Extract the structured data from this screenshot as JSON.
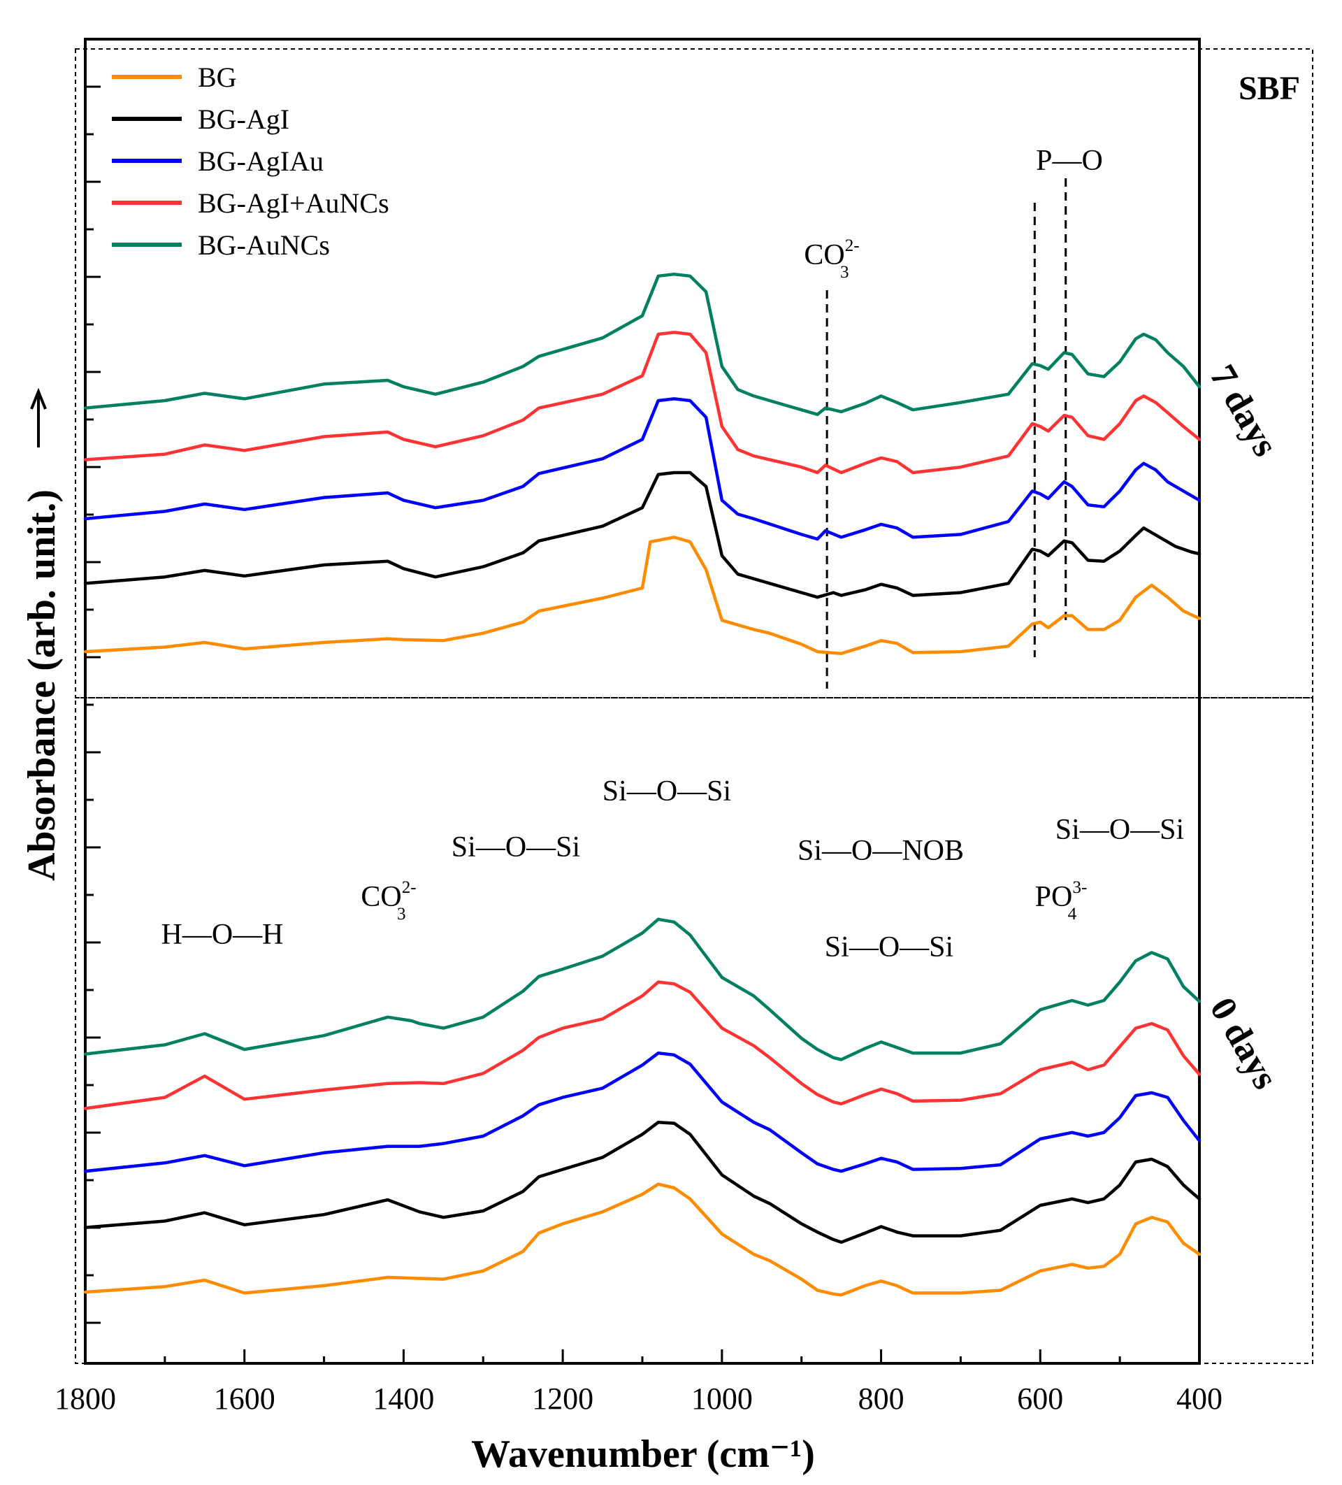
{
  "chart_data": {
    "type": "line",
    "title": "",
    "xlabel": "Wavenumber (cm⁻¹)",
    "ylabel": "Absorbance (arb. unit.)",
    "xlim": [
      1800,
      400
    ],
    "x_ticks": [
      "1800",
      "1600",
      "1400",
      "1200",
      "1000",
      "800",
      "600",
      "400"
    ],
    "medium_label": "SBF",
    "panels": [
      {
        "id": "top",
        "label": "7 days"
      },
      {
        "id": "bottom",
        "label": "0 days"
      }
    ],
    "legend": [
      "BG",
      "BG-AgI",
      "BG-AgIAu",
      "BG-AgI+AuNCs",
      "BG-AuNCs"
    ],
    "colors": {
      "BG": "#ff8c00",
      "BG-AgI": "#000000",
      "BG-AgIAu": "#0000ff",
      "BG-AgI+AuNCs": "#ff3333",
      "BG-AuNCs": "#008060"
    },
    "annotations_top": [
      {
        "text": "CO",
        "sub": "3",
        "sup": "2-",
        "x": 868
      },
      {
        "text": "P—O",
        "x_lines": [
          607,
          568
        ]
      }
    ],
    "annotations_bottom": [
      {
        "text": "H—O—H",
        "x": 1620
      },
      {
        "text": "CO",
        "sub": "3",
        "sup": "2-",
        "x": 1415
      },
      {
        "text": "Si—O—Si",
        "x": 1250
      },
      {
        "text": "Si—O—Si",
        "x": 1080
      },
      {
        "text": "Si—O—NOB",
        "x": 900
      },
      {
        "text": "Si—O—Si",
        "x": 790
      },
      {
        "text": "PO",
        "sub": "4",
        "sup": "3-",
        "x": 590
      },
      {
        "text": "Si—O—Si",
        "x": 470
      }
    ],
    "series_top": [
      {
        "name": "BG",
        "x": [
          1800,
          1700,
          1650,
          1600,
          1500,
          1420,
          1400,
          1350,
          1300,
          1250,
          1230,
          1150,
          1100,
          1090,
          1060,
          1040,
          1020,
          1000,
          980,
          960,
          940,
          900,
          880,
          850,
          820,
          800,
          780,
          760,
          700,
          640,
          610,
          600,
          590,
          570,
          560,
          540,
          520,
          500,
          480,
          460,
          440,
          420,
          400
        ],
        "y": [
          0.6,
          1.1,
          1.6,
          0.9,
          1.6,
          2.0,
          1.9,
          1.8,
          2.6,
          3.8,
          5.0,
          6.4,
          7.5,
          12.5,
          13.0,
          12.5,
          9.5,
          4.0,
          3.5,
          3.0,
          2.6,
          1.4,
          0.6,
          0.4,
          1.2,
          1.8,
          1.5,
          0.5,
          0.6,
          1.2,
          3.6,
          3.8,
          3.2,
          4.5,
          4.5,
          3.0,
          3.0,
          4.0,
          6.5,
          7.8,
          6.5,
          5.0,
          4.2
        ]
      },
      {
        "name": "BG-AgI",
        "x": [
          1800,
          1700,
          1650,
          1600,
          1500,
          1420,
          1400,
          1360,
          1300,
          1250,
          1230,
          1150,
          1100,
          1080,
          1060,
          1040,
          1020,
          1000,
          980,
          960,
          900,
          880,
          860,
          850,
          820,
          800,
          780,
          760,
          700,
          640,
          610,
          600,
          590,
          570,
          560,
          540,
          520,
          500,
          480,
          470,
          450,
          430,
          410,
          400
        ],
        "y": [
          8.0,
          8.7,
          9.4,
          8.8,
          10.0,
          10.4,
          9.6,
          8.7,
          9.8,
          11.3,
          12.6,
          14.2,
          16.2,
          19.8,
          20.0,
          20.0,
          18.5,
          11.0,
          9.0,
          8.5,
          7.0,
          6.5,
          7.0,
          6.7,
          7.3,
          7.9,
          7.5,
          6.7,
          7.0,
          8.0,
          11.7,
          11.5,
          11.0,
          12.6,
          12.4,
          10.5,
          10.4,
          11.5,
          13.2,
          14.0,
          13.0,
          12.0,
          11.4,
          11.2
        ]
      },
      {
        "name": "BG-AgIAu",
        "x": [
          1800,
          1700,
          1650,
          1600,
          1500,
          1420,
          1400,
          1360,
          1300,
          1250,
          1230,
          1150,
          1100,
          1080,
          1060,
          1040,
          1020,
          1000,
          980,
          960,
          900,
          880,
          870,
          850,
          820,
          800,
          780,
          760,
          700,
          640,
          610,
          600,
          590,
          570,
          560,
          540,
          520,
          500,
          480,
          470,
          455,
          440,
          420,
          400
        ],
        "y": [
          15.0,
          15.8,
          16.6,
          16.0,
          17.3,
          17.8,
          17.0,
          16.2,
          17.0,
          18.5,
          19.9,
          21.5,
          23.6,
          27.8,
          28.0,
          27.8,
          26.0,
          17.0,
          15.5,
          15.0,
          13.3,
          12.8,
          13.7,
          13.0,
          13.8,
          14.4,
          14.0,
          13.0,
          13.3,
          14.7,
          18.0,
          17.7,
          17.2,
          19.0,
          18.5,
          16.5,
          16.3,
          18.0,
          20.3,
          21.0,
          20.3,
          19.0,
          18.0,
          17.0
        ]
      },
      {
        "name": "BG-AgI+AuNCs",
        "x": [
          1800,
          1700,
          1650,
          1600,
          1500,
          1420,
          1400,
          1360,
          1300,
          1250,
          1230,
          1150,
          1100,
          1080,
          1060,
          1040,
          1020,
          1000,
          980,
          960,
          900,
          880,
          870,
          850,
          820,
          800,
          780,
          760,
          700,
          640,
          610,
          600,
          590,
          570,
          560,
          540,
          520,
          500,
          480,
          470,
          455,
          440,
          420,
          400
        ],
        "y": [
          21.4,
          22.0,
          23.0,
          22.4,
          23.9,
          24.4,
          23.6,
          22.8,
          24.0,
          25.7,
          27.0,
          28.5,
          30.5,
          35.0,
          35.2,
          35.0,
          33.0,
          25.0,
          22.5,
          21.8,
          20.6,
          20.0,
          20.8,
          20.0,
          21.0,
          21.6,
          21.2,
          20.0,
          20.6,
          21.8,
          25.3,
          25.0,
          24.5,
          26.2,
          26.0,
          24.0,
          23.6,
          25.3,
          27.8,
          28.3,
          27.6,
          26.5,
          25.0,
          23.6
        ]
      },
      {
        "name": "BG-AuNCs",
        "x": [
          1800,
          1700,
          1650,
          1600,
          1500,
          1420,
          1400,
          1360,
          1300,
          1250,
          1230,
          1150,
          1100,
          1080,
          1060,
          1040,
          1020,
          1000,
          980,
          960,
          900,
          880,
          870,
          850,
          820,
          800,
          780,
          760,
          700,
          640,
          610,
          600,
          590,
          570,
          560,
          540,
          520,
          500,
          480,
          470,
          455,
          440,
          420,
          400
        ],
        "y": [
          27.0,
          27.8,
          28.6,
          28.0,
          29.6,
          30.0,
          29.3,
          28.5,
          29.8,
          31.5,
          32.6,
          34.6,
          37.0,
          41.3,
          41.5,
          41.3,
          39.6,
          31.5,
          29.0,
          28.3,
          26.8,
          26.3,
          27.0,
          26.6,
          27.5,
          28.3,
          27.6,
          26.8,
          27.6,
          28.5,
          31.8,
          31.6,
          31.2,
          33.0,
          32.8,
          30.7,
          30.4,
          32.0,
          34.5,
          35.0,
          34.4,
          33.0,
          31.5,
          29.3
        ]
      }
    ],
    "series_bottom": [
      {
        "name": "BG",
        "x": [
          1800,
          1700,
          1650,
          1600,
          1500,
          1420,
          1350,
          1300,
          1250,
          1230,
          1200,
          1150,
          1100,
          1080,
          1060,
          1040,
          1000,
          960,
          940,
          900,
          880,
          860,
          850,
          820,
          800,
          780,
          760,
          700,
          650,
          600,
          560,
          540,
          520,
          500,
          480,
          460,
          440,
          420,
          400
        ],
        "y": [
          0.9,
          1.5,
          2.2,
          0.8,
          1.6,
          2.5,
          2.3,
          3.2,
          5.3,
          7.3,
          8.3,
          9.6,
          11.5,
          12.6,
          12.2,
          11.0,
          7.2,
          5.0,
          4.3,
          2.3,
          1.1,
          0.7,
          0.6,
          1.6,
          2.1,
          1.6,
          0.8,
          0.8,
          1.1,
          3.2,
          3.9,
          3.5,
          3.7,
          5.0,
          8.3,
          9.0,
          8.5,
          6.2,
          5.0
        ]
      },
      {
        "name": "BG-AgI",
        "x": [
          1800,
          1700,
          1650,
          1600,
          1500,
          1420,
          1380,
          1350,
          1300,
          1250,
          1230,
          1200,
          1150,
          1100,
          1080,
          1060,
          1040,
          1000,
          960,
          940,
          900,
          880,
          860,
          850,
          820,
          800,
          780,
          760,
          700,
          650,
          600,
          560,
          540,
          520,
          500,
          480,
          460,
          440,
          420,
          400
        ],
        "y": [
          7.9,
          8.6,
          9.5,
          8.2,
          9.3,
          10.9,
          9.6,
          9.0,
          9.7,
          11.8,
          13.4,
          14.2,
          15.5,
          18.0,
          19.3,
          19.2,
          18.0,
          13.6,
          11.3,
          10.5,
          8.3,
          7.4,
          6.6,
          6.3,
          7.3,
          8.0,
          7.4,
          7.0,
          7.0,
          7.6,
          10.3,
          11.0,
          10.6,
          11.0,
          12.5,
          15.0,
          15.3,
          14.5,
          12.5,
          11.0
        ]
      },
      {
        "name": "BG-AgIAu",
        "x": [
          1800,
          1700,
          1650,
          1600,
          1500,
          1420,
          1380,
          1350,
          1300,
          1250,
          1230,
          1200,
          1150,
          1100,
          1080,
          1060,
          1040,
          1000,
          960,
          940,
          900,
          880,
          860,
          850,
          820,
          800,
          780,
          760,
          700,
          650,
          600,
          560,
          540,
          520,
          500,
          480,
          460,
          440,
          420,
          400
        ],
        "y": [
          14.0,
          14.9,
          15.7,
          14.6,
          16.0,
          16.7,
          16.7,
          17.0,
          17.8,
          20.0,
          21.2,
          22.0,
          23.0,
          25.5,
          26.8,
          26.6,
          25.6,
          21.5,
          19.3,
          18.5,
          16.0,
          14.8,
          14.2,
          14.0,
          14.8,
          15.4,
          15.0,
          14.2,
          14.3,
          14.7,
          17.5,
          18.2,
          17.8,
          18.2,
          19.8,
          22.2,
          22.5,
          22.0,
          19.5,
          17.3
        ]
      },
      {
        "name": "BG-AgI+AuNCs",
        "x": [
          1800,
          1700,
          1650,
          1600,
          1500,
          1420,
          1380,
          1350,
          1300,
          1250,
          1230,
          1200,
          1150,
          1100,
          1080,
          1060,
          1040,
          1000,
          960,
          940,
          900,
          880,
          860,
          850,
          820,
          800,
          780,
          760,
          700,
          650,
          600,
          560,
          540,
          520,
          500,
          480,
          460,
          440,
          420,
          400
        ],
        "y": [
          20.8,
          22.0,
          24.3,
          21.8,
          22.8,
          23.5,
          23.6,
          23.5,
          24.6,
          27.1,
          28.5,
          29.5,
          30.5,
          33.0,
          34.5,
          34.3,
          33.4,
          29.5,
          27.6,
          26.3,
          23.5,
          22.3,
          21.5,
          21.3,
          22.3,
          22.9,
          22.4,
          21.6,
          21.7,
          22.4,
          25.0,
          25.8,
          25.0,
          25.5,
          27.5,
          29.5,
          30.0,
          29.3,
          26.5,
          24.5
        ]
      },
      {
        "name": "BG-AuNCs",
        "x": [
          1800,
          1700,
          1650,
          1600,
          1500,
          1420,
          1390,
          1380,
          1350,
          1300,
          1250,
          1230,
          1200,
          1150,
          1100,
          1080,
          1060,
          1040,
          1000,
          960,
          940,
          900,
          880,
          860,
          850,
          820,
          800,
          780,
          760,
          700,
          650,
          600,
          560,
          540,
          520,
          500,
          480,
          460,
          440,
          420,
          400
        ],
        "y": [
          26.7,
          27.7,
          28.9,
          27.2,
          28.7,
          30.7,
          30.3,
          30.0,
          29.5,
          30.7,
          33.5,
          35.1,
          35.9,
          37.3,
          39.8,
          41.3,
          41.0,
          39.6,
          35.0,
          33.0,
          31.5,
          28.4,
          27.2,
          26.3,
          26.1,
          27.3,
          28.0,
          27.4,
          26.8,
          26.8,
          27.8,
          31.5,
          32.5,
          32.0,
          32.5,
          34.5,
          36.8,
          37.7,
          37.0,
          34.0,
          32.4
        ]
      }
    ]
  }
}
